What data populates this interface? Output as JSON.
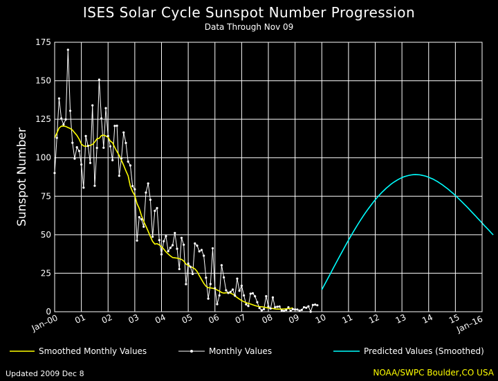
{
  "chart_data": {
    "type": "line",
    "title": "ISES Solar Cycle Sunspot Number Progression",
    "subtitle": "Data Through Nov 09",
    "ylabel": "Sunspot Number",
    "xlabel": "",
    "ylim": [
      0,
      175
    ],
    "yticks": [
      0,
      25,
      50,
      75,
      100,
      125,
      150,
      175
    ],
    "xlim": [
      "2000-01",
      "2016-01"
    ],
    "xtick_labels": [
      "Jan–00",
      "01",
      "02",
      "03",
      "04",
      "05",
      "06",
      "07",
      "08",
      "09",
      "10",
      "11",
      "12",
      "13",
      "14",
      "15",
      "Jan–16"
    ],
    "grid": true,
    "legend_position": "bottom",
    "series": [
      {
        "name": "Monthly Values",
        "color": "#ffffff",
        "marker": "dot",
        "values": [
          90.1,
          112.9,
          138.5,
          125.5,
          121.6,
          124.9,
          170.1,
          130.5,
          109.7,
          99.4,
          106.8,
          104.4,
          95.6,
          80.6,
          114.1,
          107.7,
          96.6,
          134.0,
          81.8,
          106.4,
          150.7,
          125.5,
          106.5,
          132.2,
          114.1,
          107.4,
          98.4,
          120.7,
          120.8,
          88.3,
          99.6,
          116.4,
          109.6,
          97.5,
          95.0,
          81.6,
          79.5,
          46.2,
          61.4,
          60.0,
          55.2,
          77.4,
          83.3,
          72.7,
          48.7,
          65.5,
          67.3,
          46.5,
          37.3,
          45.8,
          49.1,
          39.3,
          41.5,
          43.2,
          51.1,
          40.9,
          27.7,
          48.0,
          43.5,
          17.9,
          31.3,
          29.2,
          24.5,
          44.3,
          42.9,
          39.2,
          40.1,
          36.4,
          22.1,
          8.5,
          18.0,
          41.2,
          15.3,
          4.9,
          10.6,
          30.2,
          22.3,
          13.9,
          12.2,
          12.9,
          14.4,
          10.4,
          21.5,
          13.6,
          16.9,
          10.6,
          4.8,
          3.7,
          11.7,
          12.0,
          10.0,
          6.2,
          2.4,
          0.9,
          1.7,
          10.1,
          3.4,
          2.1,
          9.3,
          2.9,
          3.2,
          3.4,
          0.8,
          0.5,
          1.1,
          2.9,
          0.5,
          1.7,
          1.5,
          1.4,
          0.7,
          1.2,
          2.9,
          2.6,
          3.5,
          0.0,
          4.4,
          4.6,
          4.2
        ]
      },
      {
        "name": "Smoothed Monthly Values",
        "color": "#ffff00",
        "values": [
          112.9,
          116.0,
          119.3,
          120.5,
          120.6,
          120.3,
          119.6,
          119.0,
          118.0,
          116.2,
          114.5,
          112.1,
          108.9,
          107.7,
          107.4,
          107.8,
          108.1,
          108.6,
          110.2,
          112.3,
          112.6,
          114.4,
          114.7,
          114.1,
          113.3,
          110.8,
          109.8,
          106.7,
          104.0,
          101.5,
          98.4,
          95.1,
          91.5,
          88.3,
          81.5,
          78.0,
          75.5,
          70.2,
          67.1,
          62.4,
          58.6,
          55.6,
          52.3,
          48.8,
          45.7,
          43.9,
          44.2,
          43.4,
          42.2,
          40.7,
          38.9,
          37.5,
          36.2,
          35.2,
          35.0,
          34.8,
          34.4,
          34.0,
          32.9,
          30.9,
          30.0,
          29.2,
          28.7,
          27.8,
          26.1,
          23.4,
          20.9,
          18.4,
          16.5,
          15.6,
          15.5,
          15.2,
          14.8,
          14.1,
          13.4,
          12.5,
          12.1,
          12.3,
          12.4,
          12.1,
          11.4,
          10.3,
          9.2,
          8.2,
          7.3,
          6.5,
          5.9,
          5.4,
          5.0,
          4.5,
          4.0,
          3.6,
          3.3,
          3.2,
          3.0,
          2.7,
          2.4,
          2.2,
          2.1,
          1.8,
          1.7,
          1.7,
          1.7,
          1.8,
          1.9,
          2.0,
          2.2,
          2.5
        ]
      },
      {
        "name": "Predicted Values (Smoothed)",
        "color": "#00ffff",
        "x_start": "2010-01",
        "values": [
          14.3,
          17.0,
          19.7,
          22.4,
          25.1,
          27.9,
          30.6,
          33.3,
          36.0,
          38.6,
          41.3,
          43.9,
          46.5,
          49.0,
          51.5,
          53.9,
          56.3,
          58.6,
          60.8,
          63.0,
          65.1,
          67.1,
          69.0,
          70.9,
          72.7,
          74.4,
          76.0,
          77.5,
          78.9,
          80.3,
          81.5,
          82.7,
          83.8,
          84.7,
          85.6,
          86.4,
          87.1,
          87.7,
          88.1,
          88.5,
          88.8,
          89.0,
          89.1,
          89.0,
          88.9,
          88.6,
          88.3,
          87.9,
          87.3,
          86.7,
          86.1,
          85.3,
          84.5,
          83.5,
          82.6,
          81.5,
          80.4,
          79.3,
          78.0,
          76.8,
          75.5,
          74.1,
          72.7,
          71.3,
          69.8,
          68.4,
          66.9,
          65.3,
          63.8,
          62.3,
          60.7,
          59.2,
          57.6,
          56.0,
          54.5,
          53.0,
          51.4,
          49.9
        ]
      }
    ]
  },
  "legend": {
    "smoothed": "Smoothed Monthly Values",
    "monthly": "Monthly Values",
    "predicted": "Predicted Values (Smoothed)"
  },
  "footer": {
    "updated": "Updated 2009 Dec  8",
    "source": "NOAA/SWPC Boulder,CO USA"
  }
}
